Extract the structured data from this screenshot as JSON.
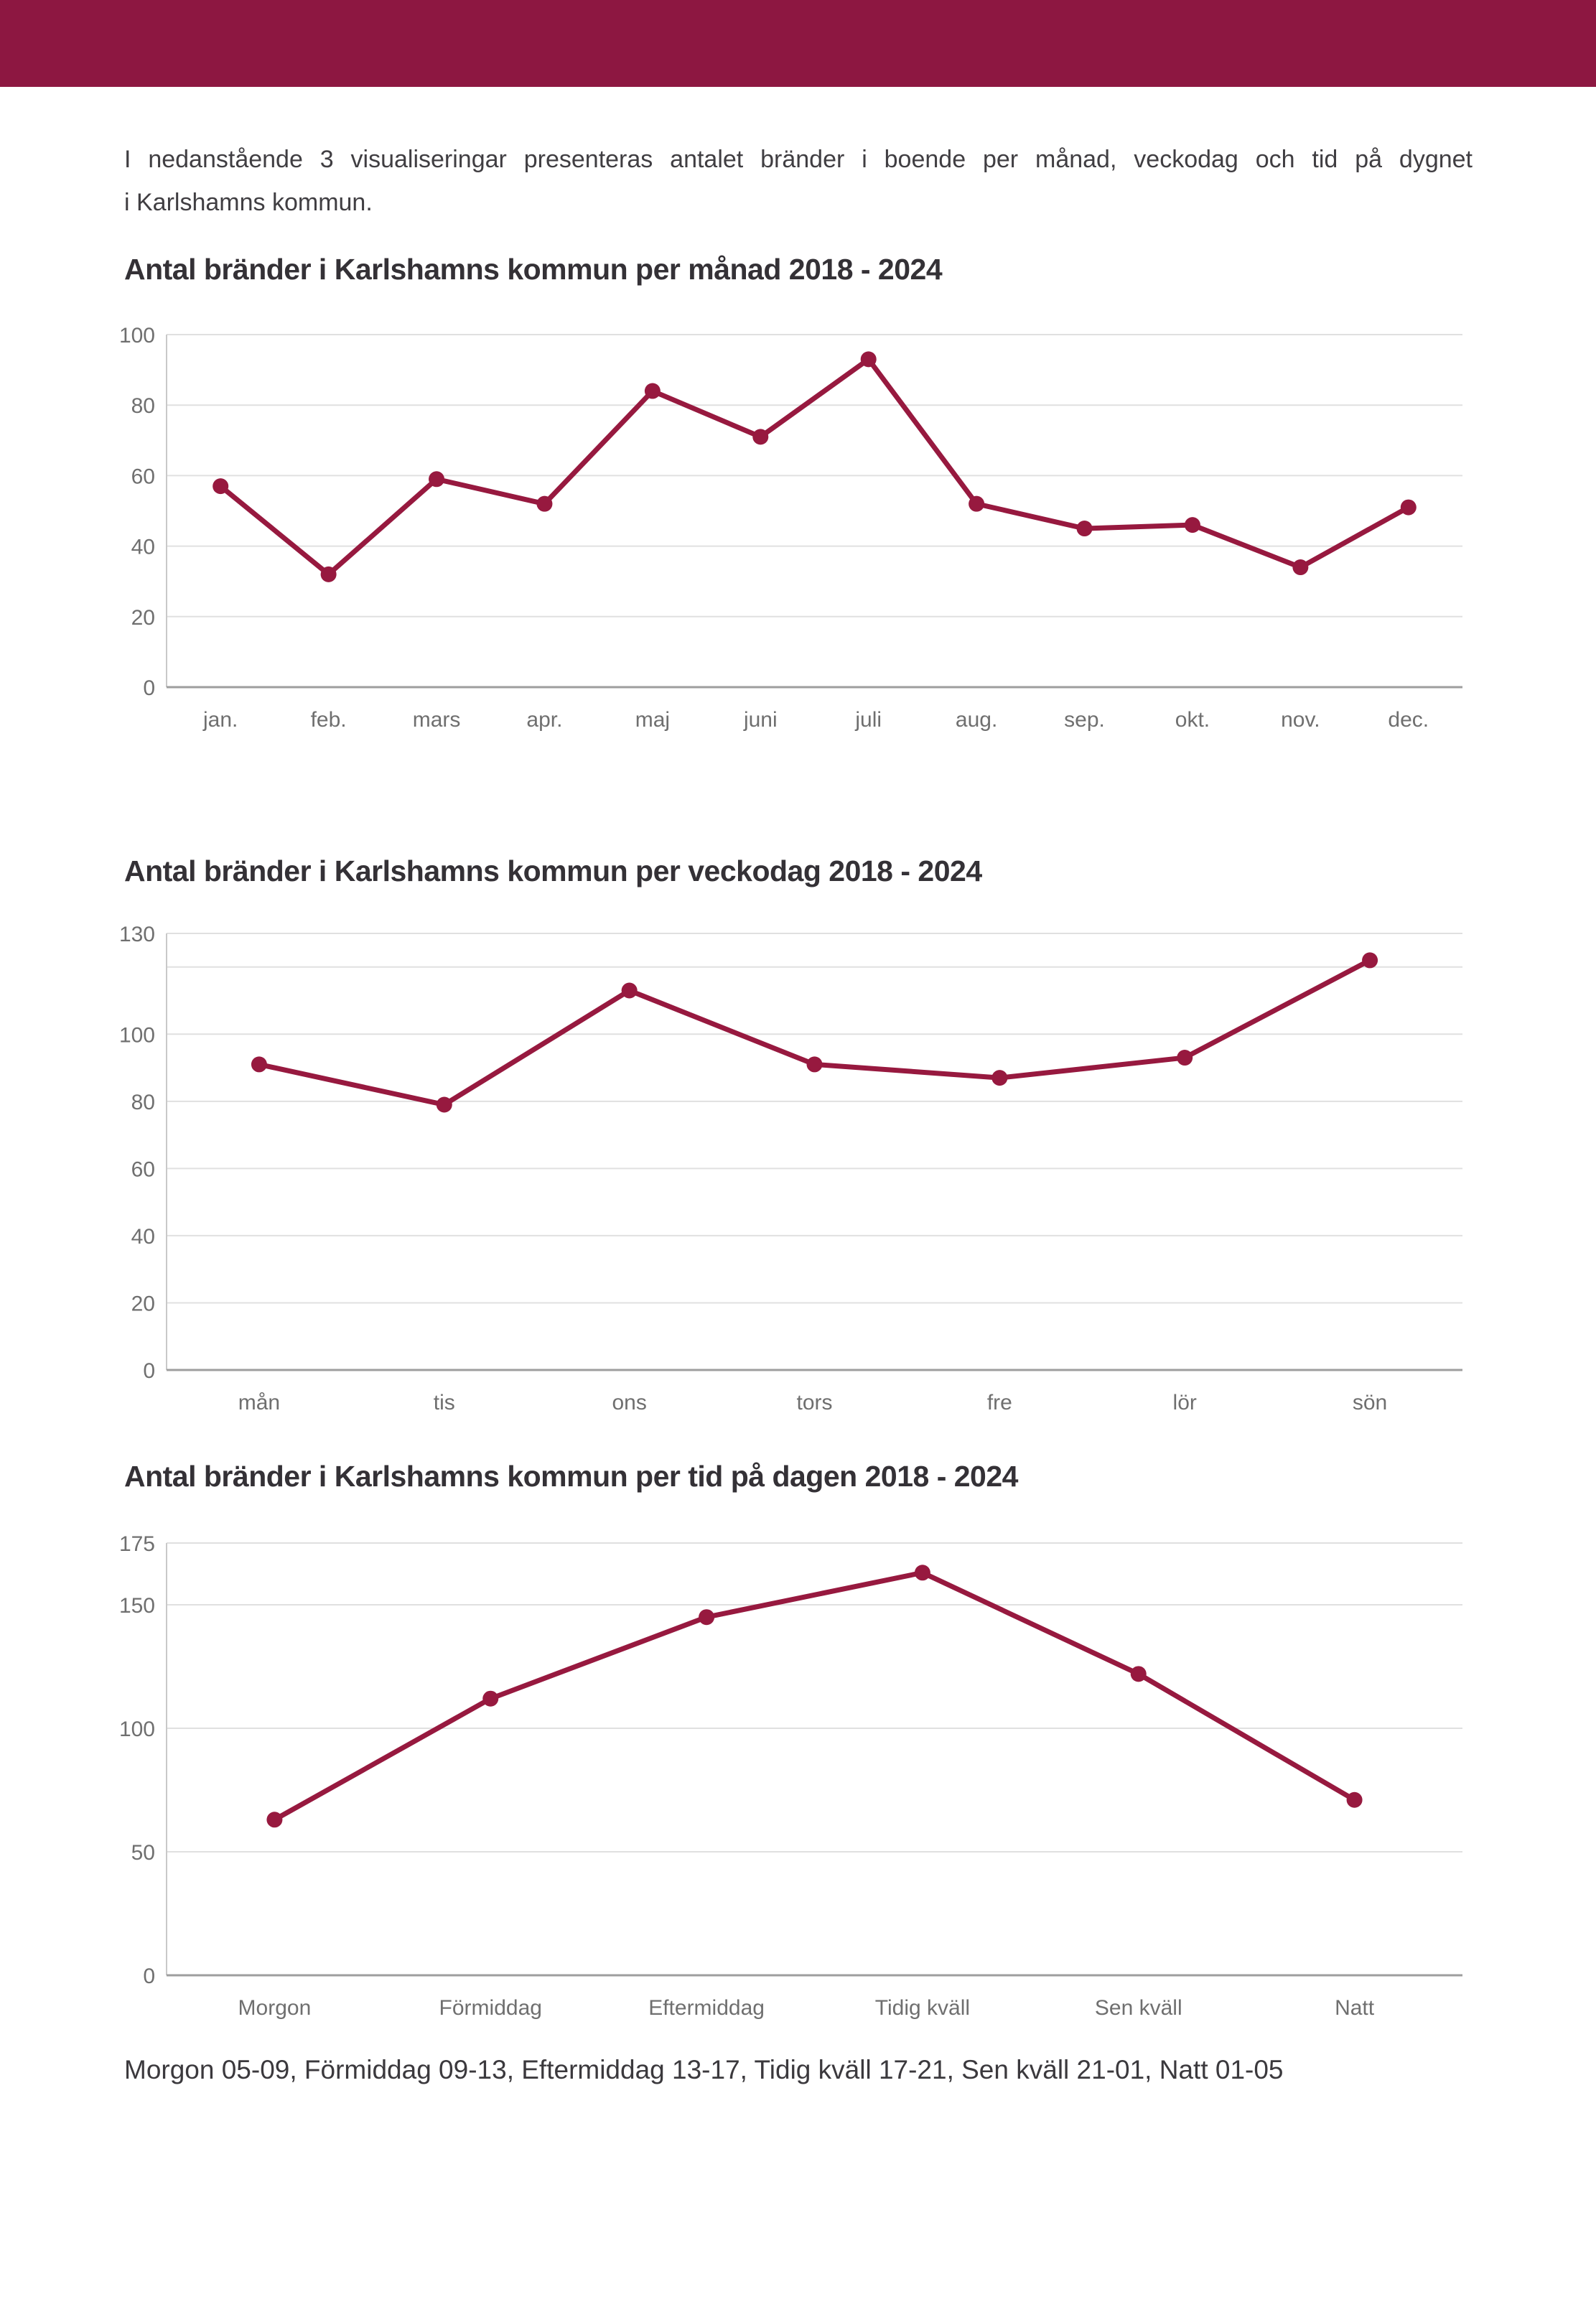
{
  "page": {
    "intro_line1": "I nedanstående 3 visualiseringar presenteras antalet bränder i boende per månad, veckodag och tid på dygnet",
    "intro_line2": "i Karlshamns kommun.",
    "footnote": "Morgon 05-09, Förmiddag 09-13, Eftermiddag 13-17, Tidig kväll 17-21, Sen kväll 21-01, Natt 01-05"
  },
  "colors": {
    "header": "#8D1741",
    "line": "#97193F",
    "point": "#97193F",
    "gridline": "#E0E0E0",
    "axis_left": "#C9C9C9",
    "axis_bottom": "#9E9E9E",
    "tick_label": "#6F6F6F",
    "title_text": "#343136",
    "body_text": "#403E42"
  },
  "chart_data": [
    {
      "type": "line",
      "title": "Antal bränder i Karlshamns kommun per månad 2018 - 2024",
      "categories": [
        "jan.",
        "feb.",
        "mars",
        "apr.",
        "maj",
        "juni",
        "juli",
        "aug.",
        "sep.",
        "okt.",
        "nov.",
        "dec."
      ],
      "values": [
        57,
        32,
        59,
        52,
        84,
        71,
        93,
        52,
        45,
        46,
        34,
        51
      ],
      "xlabel": "",
      "ylabel": "",
      "ylim": [
        0,
        100
      ],
      "y_ticks": [
        0,
        20,
        40,
        60,
        80,
        100
      ],
      "extra_gridlines": [],
      "grid": true,
      "legend": "none"
    },
    {
      "type": "line",
      "title": "Antal bränder i Karlshamns kommun per veckodag 2018 - 2024",
      "categories": [
        "mån",
        "tis",
        "ons",
        "tors",
        "fre",
        "lör",
        "sön"
      ],
      "values": [
        91,
        79,
        113,
        91,
        87,
        93,
        122
      ],
      "xlabel": "",
      "ylabel": "",
      "ylim": [
        0,
        130
      ],
      "y_ticks": [
        0,
        20,
        40,
        60,
        80,
        100,
        130
      ],
      "extra_gridlines": [
        120
      ],
      "grid": true,
      "legend": "none"
    },
    {
      "type": "line",
      "title": "Antal bränder i Karlshamns kommun per tid på dagen 2018 - 2024",
      "categories": [
        "Morgon",
        "Förmiddag",
        "Eftermiddag",
        "Tidig kväll",
        "Sen kväll",
        "Natt"
      ],
      "values": [
        63,
        112,
        145,
        163,
        122,
        71
      ],
      "xlabel": "",
      "ylabel": "",
      "ylim": [
        0,
        175
      ],
      "y_ticks": [
        0,
        50,
        100,
        150,
        175
      ],
      "extra_gridlines": [],
      "grid": true,
      "legend": "none"
    }
  ]
}
